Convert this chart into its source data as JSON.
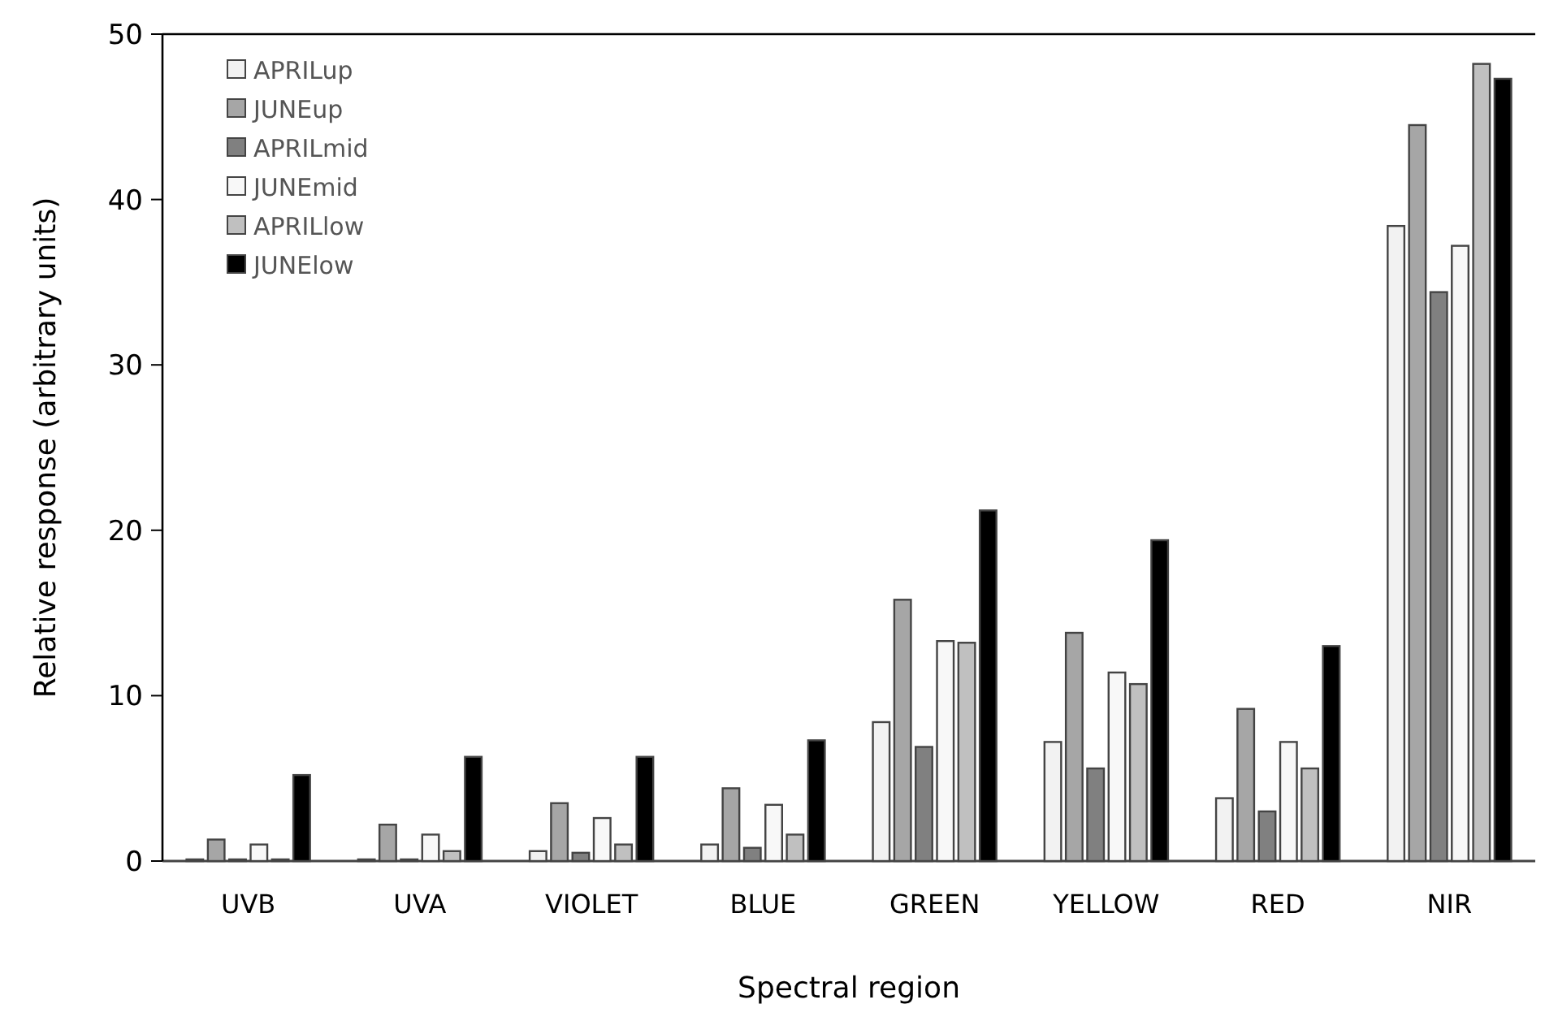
{
  "chart_data": {
    "type": "bar",
    "xlabel": "Spectral region",
    "ylabel": "Relative response (arbitrary units)",
    "categories": [
      "UVB",
      "UVA",
      "VIOLET",
      "BLUE",
      "GREEN",
      "YELLOW",
      "RED",
      "NIR"
    ],
    "series": [
      {
        "name": "APRILup",
        "color": "#f2f2f2",
        "values": [
          0.1,
          0.1,
          0.6,
          1.0,
          8.4,
          7.2,
          3.8,
          38.4
        ]
      },
      {
        "name": "JUNEup",
        "color": "#a6a6a6",
        "values": [
          1.3,
          2.2,
          3.5,
          4.4,
          15.8,
          13.8,
          9.2,
          44.5
        ]
      },
      {
        "name": "APRILmid",
        "color": "#808080",
        "values": [
          0.1,
          0.1,
          0.5,
          0.8,
          6.9,
          5.6,
          3.0,
          34.4
        ]
      },
      {
        "name": "JUNEmid",
        "color": "#f8f8f8",
        "values": [
          1.0,
          1.6,
          2.6,
          3.4,
          13.3,
          11.4,
          7.2,
          37.2
        ]
      },
      {
        "name": "APRILlow",
        "color": "#c0c0c0",
        "values": [
          0.1,
          0.6,
          1.0,
          1.6,
          13.2,
          10.7,
          5.6,
          48.2
        ]
      },
      {
        "name": "JUNElow",
        "color": "#000000",
        "values": [
          5.2,
          6.3,
          6.3,
          7.3,
          21.2,
          19.4,
          13.0,
          47.3
        ]
      }
    ],
    "ylim": [
      0,
      50
    ],
    "yticks": [
      0,
      10,
      20,
      30,
      40,
      50
    ],
    "legend": "top left"
  }
}
